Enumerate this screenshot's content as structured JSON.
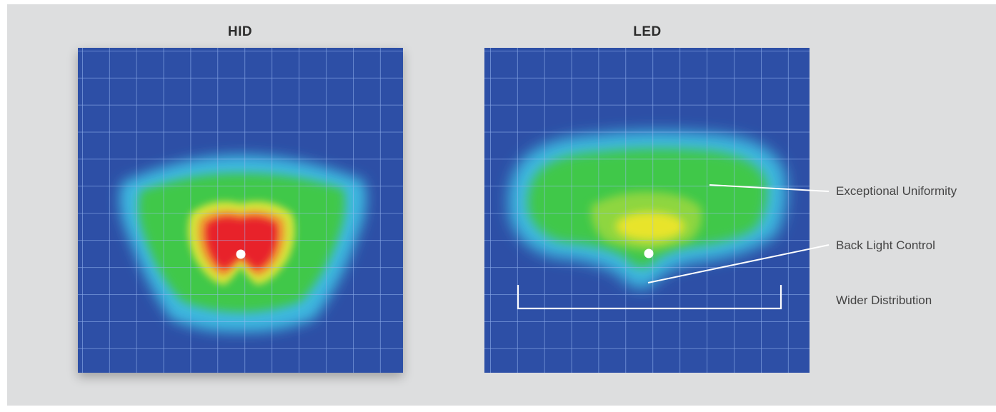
{
  "panels": {
    "hid": {
      "title": "HID"
    },
    "led": {
      "title": "LED"
    }
  },
  "annotations": {
    "uniformity": "Exceptional Uniformity",
    "back_light": "Back Light Control",
    "distribution": "Wider Distribution"
  },
  "colors": {
    "background": "#dddedf",
    "field_blue": "#2d4fa6",
    "grid": "#8fb1f2",
    "red": "#e8242a",
    "yellow": "#e8e82c",
    "green": "#3fbf3c",
    "cyan": "#39c6e6"
  }
}
